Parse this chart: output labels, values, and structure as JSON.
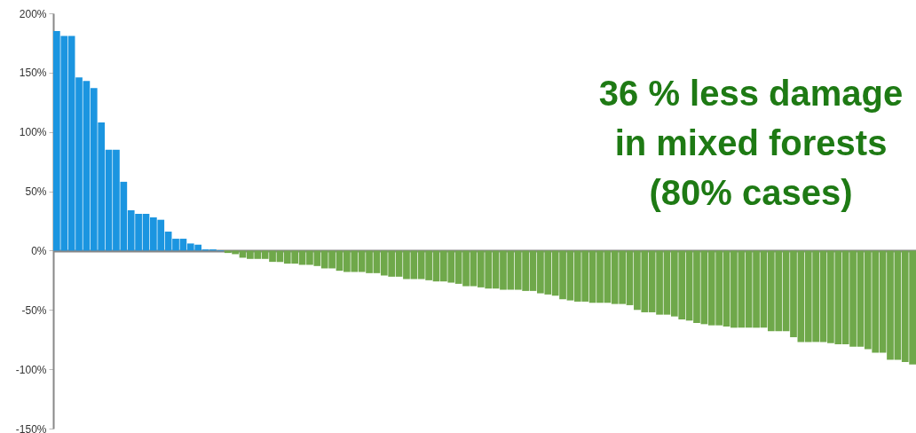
{
  "chart_data": {
    "type": "bar",
    "annotations": [
      "36 % less damage\nin mixed forests\n(80% cases)"
    ],
    "categories": [
      null,
      null,
      null,
      null,
      null,
      null,
      null,
      null,
      null,
      null,
      null,
      null,
      null,
      null,
      null,
      null,
      null,
      null,
      null,
      null,
      null,
      null,
      null,
      null,
      null,
      null,
      null,
      null,
      null,
      null,
      null,
      null,
      null,
      null,
      null,
      null,
      null,
      null,
      null,
      null,
      null,
      null,
      null,
      null,
      null,
      null,
      null,
      null,
      null,
      null,
      null,
      null,
      null,
      null,
      null,
      null,
      null,
      null,
      null,
      null,
      null,
      null,
      null,
      null,
      null,
      null,
      null,
      null,
      null,
      null,
      null,
      null,
      null,
      null,
      null,
      null,
      null,
      null,
      null,
      null,
      null,
      null,
      null,
      null,
      null,
      null,
      null,
      null,
      null,
      null,
      null,
      null,
      null,
      null,
      null,
      null,
      null,
      null,
      null,
      null,
      null,
      null,
      null,
      null,
      null,
      null,
      null,
      null,
      null,
      null,
      null,
      null,
      null,
      null,
      null,
      null
    ],
    "values": [
      185,
      181,
      181,
      146,
      143,
      137,
      108,
      85,
      85,
      58,
      34,
      31,
      31,
      28,
      26,
      16,
      10,
      10,
      6,
      5,
      1,
      1,
      -0.5,
      -2,
      -3,
      -6,
      -7,
      -7,
      -7,
      -9.5,
      -9.5,
      -11,
      -11,
      -12,
      -12,
      -13,
      -15,
      -15,
      -17,
      -18,
      -18,
      -18,
      -19,
      -19,
      -21,
      -22,
      -22,
      -24,
      -24,
      -24,
      -25,
      -26,
      -26,
      -27,
      -28,
      -30,
      -30,
      -31,
      -32,
      -32,
      -33,
      -33,
      -33,
      -34,
      -34,
      -36,
      -37,
      -38,
      -41,
      -42,
      -43,
      -43,
      -44,
      -44,
      -44,
      -45,
      -45,
      -46,
      -50,
      -52,
      -52,
      -54,
      -54,
      -55.5,
      -58,
      -59,
      -61,
      -62,
      -63,
      -63,
      -64,
      -65,
      -65,
      -65,
      -65,
      -65,
      -68,
      -68,
      -68,
      -73,
      -77,
      -77,
      -77,
      -77,
      -78,
      -79,
      -79,
      -81,
      -81,
      -83,
      -86,
      -86,
      -92,
      -92,
      -94,
      -96
    ],
    "colors": [
      "#1b95e0",
      "#1b95e0",
      "#1b95e0",
      "#1b95e0",
      "#1b95e0",
      "#1b95e0",
      "#1b95e0",
      "#1b95e0",
      "#1b95e0",
      "#1b95e0",
      "#1b95e0",
      "#1b95e0",
      "#1b95e0",
      "#1b95e0",
      "#1b95e0",
      "#1b95e0",
      "#1b95e0",
      "#1b95e0",
      "#1b95e0",
      "#1b95e0",
      "#1b95e0",
      "#1b95e0",
      "#1b95e0",
      "#6fa84a",
      "#6fa84a",
      "#6fa84a",
      "#6fa84a",
      "#6fa84a",
      "#6fa84a",
      "#6fa84a",
      "#6fa84a",
      "#6fa84a",
      "#6fa84a",
      "#6fa84a",
      "#6fa84a",
      "#6fa84a",
      "#6fa84a",
      "#6fa84a",
      "#6fa84a",
      "#6fa84a",
      "#6fa84a",
      "#6fa84a",
      "#6fa84a",
      "#6fa84a",
      "#6fa84a",
      "#6fa84a",
      "#6fa84a",
      "#6fa84a",
      "#6fa84a",
      "#6fa84a",
      "#6fa84a",
      "#6fa84a",
      "#6fa84a",
      "#6fa84a",
      "#6fa84a",
      "#6fa84a",
      "#6fa84a",
      "#6fa84a",
      "#6fa84a",
      "#6fa84a",
      "#6fa84a",
      "#6fa84a",
      "#6fa84a",
      "#6fa84a",
      "#6fa84a",
      "#6fa84a",
      "#6fa84a",
      "#6fa84a",
      "#6fa84a",
      "#6fa84a",
      "#6fa84a",
      "#6fa84a",
      "#6fa84a",
      "#6fa84a",
      "#6fa84a",
      "#6fa84a",
      "#6fa84a",
      "#6fa84a",
      "#6fa84a",
      "#6fa84a",
      "#6fa84a",
      "#6fa84a",
      "#6fa84a",
      "#6fa84a",
      "#6fa84a",
      "#6fa84a",
      "#6fa84a",
      "#6fa84a",
      "#6fa84a",
      "#6fa84a",
      "#6fa84a",
      "#6fa84a",
      "#6fa84a",
      "#6fa84a",
      "#6fa84a",
      "#6fa84a",
      "#6fa84a",
      "#6fa84a",
      "#6fa84a",
      "#6fa84a",
      "#6fa84a",
      "#6fa84a",
      "#6fa84a",
      "#6fa84a",
      "#6fa84a",
      "#6fa84a",
      "#6fa84a",
      "#6fa84a",
      "#6fa84a",
      "#6fa84a",
      "#6fa84a",
      "#6fa84a",
      "#6fa84a",
      "#6fa84a",
      "#6fa84a",
      "#6fa84a"
    ],
    "ylim": [
      -150,
      200
    ],
    "yticks": [
      {
        "value": -150,
        "label": "-150%"
      },
      {
        "value": -100,
        "label": "-100%"
      },
      {
        "value": -50,
        "label": "-50%"
      },
      {
        "value": 0,
        "label": "0%"
      },
      {
        "value": 50,
        "label": "50%"
      },
      {
        "value": 100,
        "label": "100%"
      },
      {
        "value": 150,
        "label": "150%"
      },
      {
        "value": 200,
        "label": "200%"
      }
    ],
    "tick_labels": "y"
  }
}
